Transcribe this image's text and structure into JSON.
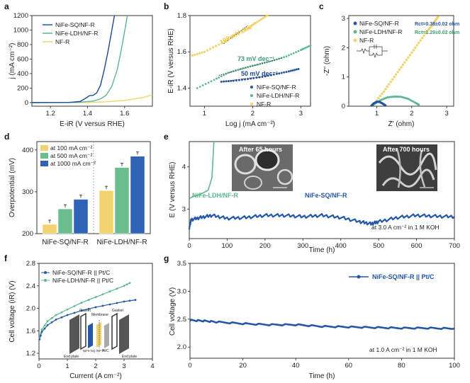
{
  "panel_letters": {
    "a": "a",
    "b": "b",
    "c": "c",
    "d": "d",
    "e": "e",
    "f": "f",
    "g": "g"
  },
  "colors": {
    "sq": "#2458a6",
    "ldh": "#5bb88f",
    "nf": "#f2d36b",
    "sq_dark": "#1d4a96",
    "ldh_bar": "#6bbf8f",
    "nf_bar": "#f3d36f",
    "sq_bar": "#2f63b5"
  },
  "chart_data": [
    {
      "panel": "a",
      "type": "line",
      "title": "",
      "xlabel": "E-iR (V versus RHE)",
      "ylabel": "j (mA cm⁻²)",
      "xlim": [
        1.1,
        1.75
      ],
      "ylim": [
        -50,
        1200
      ],
      "xticks": [
        "1.2",
        "1.4",
        "1.6"
      ],
      "yticks": [
        "0",
        "200",
        "400",
        "600",
        "800",
        "1000",
        "1200"
      ],
      "legend": [
        "NiFe-SQ/NF-R",
        "NiFe-LDH/NF-R",
        "NF-R"
      ],
      "series": [
        {
          "name": "NiFe-SQ/NF-R",
          "x": [
            1.1,
            1.3,
            1.36,
            1.39,
            1.41,
            1.43,
            1.45,
            1.47,
            1.49,
            1.51,
            1.53,
            1.545
          ],
          "y": [
            0,
            2,
            15,
            60,
            95,
            100,
            135,
            240,
            450,
            700,
            980,
            1200
          ]
        },
        {
          "name": "NiFe-LDH/NF-R",
          "x": [
            1.1,
            1.35,
            1.43,
            1.47,
            1.5,
            1.53,
            1.56,
            1.58,
            1.6,
            1.615
          ],
          "y": [
            0,
            3,
            20,
            50,
            100,
            220,
            450,
            700,
            980,
            1200
          ]
        },
        {
          "name": "NF-R",
          "x": [
            1.1,
            1.4,
            1.5,
            1.6,
            1.7,
            1.75
          ],
          "y": [
            0,
            2,
            10,
            30,
            70,
            105
          ]
        }
      ]
    },
    {
      "panel": "b",
      "type": "scatter",
      "title": "",
      "xlabel": "Log j (mA cm⁻²)",
      "ylabel": "E-iR (V versus RHE)",
      "xlim": [
        0.7,
        3.2
      ],
      "ylim": [
        1.3,
        1.8
      ],
      "xticks": [
        "1",
        "2",
        "3"
      ],
      "yticks": [
        "1.4",
        "1.6",
        "1.8"
      ],
      "legend": [
        "NiFe-SQ/NF-R",
        "NiFe-LDH/NF-R",
        "NF-R"
      ],
      "annotations": [
        "199 mV dec⁻¹",
        "73 mV dec⁻¹",
        "50 mV dec⁻¹"
      ],
      "series": [
        {
          "name": "NiFe-SQ/NF-R",
          "x": [
            1.35,
            1.6,
            1.9,
            2.2,
            2.5,
            2.75,
            2.95
          ],
          "y": [
            1.435,
            1.44,
            1.45,
            1.462,
            1.478,
            1.492,
            1.505
          ]
        },
        {
          "name": "NiFe-LDH/NF-R",
          "x": [
            0.85,
            1.2,
            1.5,
            1.8,
            2.1,
            2.4,
            2.7,
            3.0,
            3.2
          ],
          "y": [
            1.4,
            1.445,
            1.485,
            1.51,
            1.53,
            1.55,
            1.575,
            1.61,
            1.635
          ]
        },
        {
          "name": "NF-R",
          "x": [
            0.75,
            1.0,
            1.3,
            1.6,
            1.9,
            2.1,
            2.3
          ],
          "y": [
            1.58,
            1.6,
            1.64,
            1.69,
            1.73,
            1.765,
            1.8
          ]
        }
      ]
    },
    {
      "panel": "c",
      "type": "scatter",
      "title": "",
      "xlabel": "Z' (ohm)",
      "ylabel": "-Z'' (ohm)",
      "xlim": [
        0.2,
        3.2
      ],
      "ylim": [
        0,
        3.1
      ],
      "xticks": [
        "1",
        "2",
        "3"
      ],
      "yticks": [
        "0",
        "1",
        "2",
        "3"
      ],
      "legend": [
        "NiFe-SQ/NF-R",
        "NiFe-LDH/NF-R",
        "NF-R"
      ],
      "annotations": [
        "Rct=0.38±0.02 ohm",
        "Rct=1.29±0.02 ohm"
      ],
      "series": [
        {
          "name": "NiFe-SQ/NF-R",
          "x": [
            0.85,
            0.92,
            1.0,
            1.08,
            1.15,
            1.22,
            1.25
          ],
          "y": [
            0.02,
            0.1,
            0.15,
            0.15,
            0.1,
            0.05,
            0.02
          ]
        },
        {
          "name": "NiFe-LDH/NF-R",
          "x": [
            0.9,
            1.1,
            1.3,
            1.5,
            1.7,
            1.9,
            2.1,
            2.2
          ],
          "y": [
            0.05,
            0.2,
            0.3,
            0.33,
            0.32,
            0.25,
            0.12,
            0.05
          ]
        },
        {
          "name": "NF-R",
          "x": [
            0.9,
            1.2,
            1.5,
            1.8,
            2.1,
            2.4,
            2.6,
            2.75
          ],
          "y": [
            0.05,
            0.5,
            1.0,
            1.5,
            2.0,
            2.5,
            2.8,
            3.05
          ]
        }
      ]
    },
    {
      "panel": "d",
      "type": "bar",
      "title": "",
      "xlabel": "",
      "ylabel": "Overpotential (mV)",
      "ylim": [
        200,
        420
      ],
      "yticks": [
        "200",
        "300",
        "400"
      ],
      "categories": [
        "NiFe-SQ/NF-R",
        "NiFe-LDH/NF-R"
      ],
      "legend": [
        "at 100 mA cm⁻²",
        "at 500 mA cm⁻²",
        "at 1000 mA cm⁻²"
      ],
      "series": [
        {
          "name": "at 100 mA cm⁻²",
          "values": [
            222,
            303
          ]
        },
        {
          "name": "at 500 mA cm⁻²",
          "values": [
            259,
            358
          ]
        },
        {
          "name": "at 1000 mA cm⁻²",
          "values": [
            282,
            385
          ]
        }
      ]
    },
    {
      "panel": "e",
      "type": "line",
      "title": "",
      "xlabel": "Time (h)",
      "ylabel": "E (V versus RHE)",
      "xlim": [
        0,
        700
      ],
      "ylim": [
        2.3,
        4.6
      ],
      "xticks": [
        "0",
        "100",
        "200",
        "300",
        "400",
        "500",
        "600",
        "700"
      ],
      "yticks": [
        "3",
        "4"
      ],
      "labels": [
        "NiFe-LDH/NF-R",
        "NiFe-SQ/NF-R",
        "After 65 hours",
        "After 700 hours",
        "at 3.0 A cm⁻² in 1 M KOH"
      ],
      "series": [
        {
          "name": "NiFe-SQ/NF-R",
          "x": [
            0,
            5,
            30,
            60,
            100,
            150,
            200,
            250,
            300,
            350,
            400,
            450,
            480,
            500,
            550,
            600,
            650,
            700
          ],
          "y": [
            2.55,
            2.75,
            2.8,
            2.85,
            2.78,
            2.8,
            2.85,
            2.85,
            2.82,
            2.85,
            2.8,
            2.7,
            2.65,
            2.7,
            2.8,
            2.85,
            2.83,
            2.82
          ]
        },
        {
          "name": "NiFe-LDH/NF-R",
          "x": [
            0,
            10,
            30,
            50,
            60,
            65
          ],
          "y": [
            3.25,
            3.3,
            3.35,
            3.45,
            3.75,
            4.6
          ]
        }
      ]
    },
    {
      "panel": "f",
      "type": "line",
      "title": "",
      "xlabel": "Current (A cm⁻²)",
      "ylabel": "Cell voltage (iR) (V)",
      "xlim": [
        0,
        4
      ],
      "ylim": [
        1.1,
        2.8
      ],
      "xticks": [
        "0",
        "1",
        "2",
        "3",
        "4"
      ],
      "yticks": [
        "1.2",
        "1.6",
        "2.0",
        "2.4",
        "2.8"
      ],
      "legend": [
        "NiFe-SQ/NF-R || Pt/C",
        "NiFe-LDH/NF-R || Pt/C"
      ],
      "schematic_labels": [
        "Gasket",
        "Membrane",
        "Gasket",
        "NiFe-SQ /NF-R",
        "Pt/C",
        "End plate",
        "End plate"
      ],
      "series": [
        {
          "name": "NiFe-SQ/NF-R || Pt/C",
          "x": [
            0.02,
            0.1,
            0.3,
            0.6,
            1.0,
            1.5,
            2.0,
            2.5,
            3.0,
            3.4
          ],
          "y": [
            1.45,
            1.58,
            1.7,
            1.8,
            1.88,
            1.96,
            2.02,
            2.07,
            2.12,
            2.15
          ]
        },
        {
          "name": "NiFe-LDH/NF-R || Pt/C",
          "x": [
            0.02,
            0.1,
            0.3,
            0.6,
            1.0,
            1.5,
            2.0,
            2.5,
            3.0,
            3.2
          ],
          "y": [
            1.47,
            1.62,
            1.77,
            1.88,
            1.98,
            2.1,
            2.2,
            2.3,
            2.4,
            2.45
          ]
        }
      ]
    },
    {
      "panel": "g",
      "type": "line",
      "title": "",
      "xlabel": "Time (h)",
      "ylabel": "Cell voltage (V)",
      "xlim": [
        0,
        100
      ],
      "ylim": [
        1.8,
        3.5
      ],
      "xticks": [
        "0",
        "20",
        "40",
        "60",
        "80",
        "100"
      ],
      "yticks": [
        "2.0",
        "2.5",
        "3.0",
        "3.5"
      ],
      "legend": [
        "NiFe-SQ/NF-R || Pt/C"
      ],
      "annotation": "at 1.0 A cm⁻² in 1 M KOH",
      "series": [
        {
          "name": "NiFe-SQ/NF-R || Pt/C",
          "x": [
            0,
            5,
            10,
            20,
            30,
            40,
            50,
            60,
            70,
            80,
            90,
            100
          ],
          "y": [
            2.48,
            2.47,
            2.45,
            2.42,
            2.4,
            2.4,
            2.37,
            2.36,
            2.35,
            2.34,
            2.34,
            2.33
          ]
        }
      ]
    }
  ]
}
